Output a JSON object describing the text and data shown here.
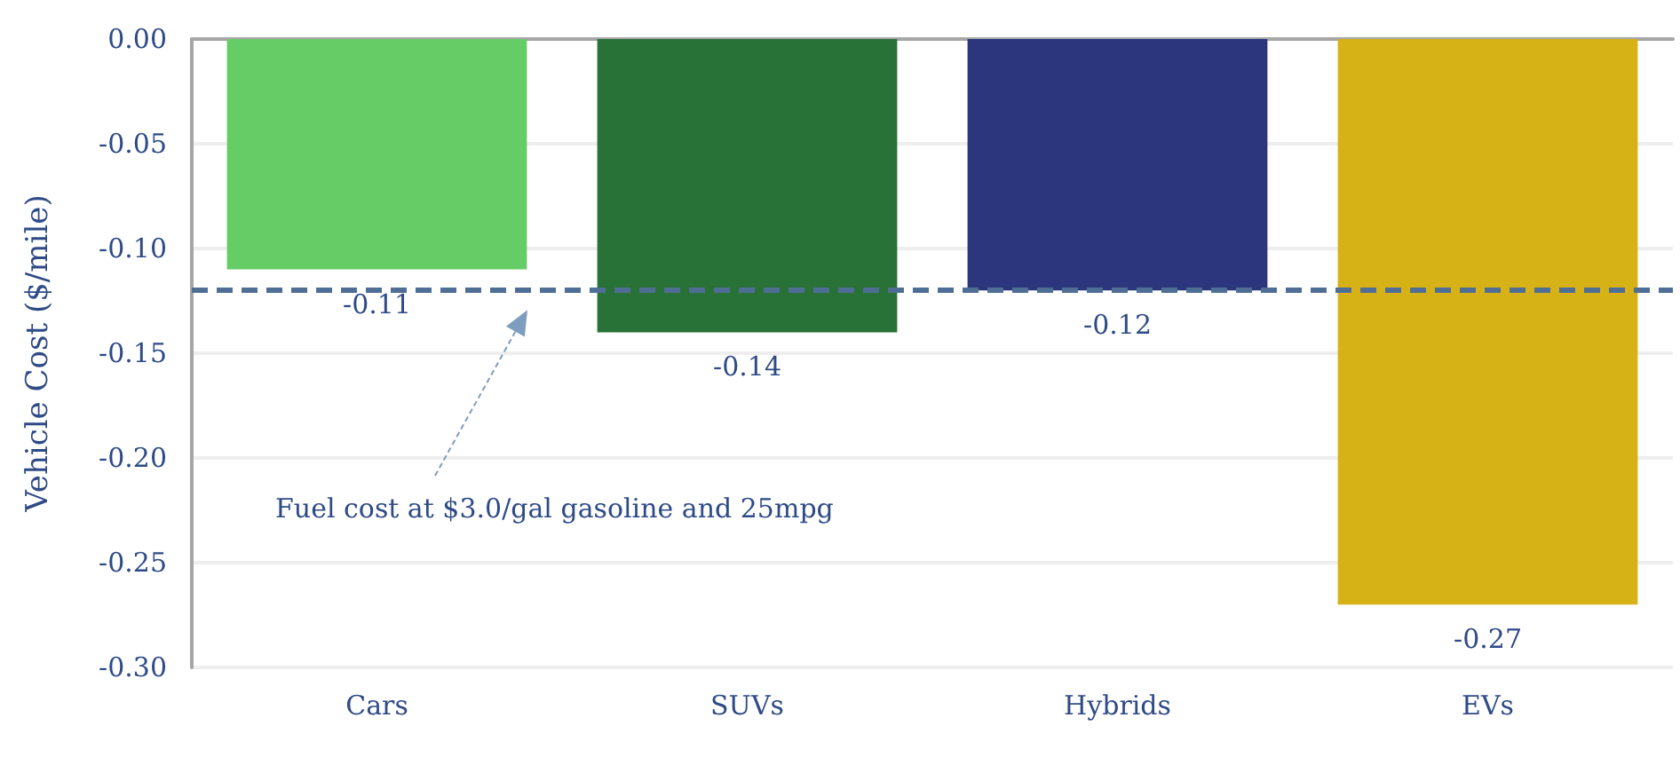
{
  "chart_data": {
    "type": "bar",
    "ylabel": "Vehicle Cost ($/mile)",
    "categories": [
      "Cars",
      "SUVs",
      "Hybrids",
      "EVs"
    ],
    "values": [
      -0.11,
      -0.14,
      -0.12,
      -0.27
    ],
    "colors": [
      "#66cc66",
      "#287137",
      "#2b367c",
      "#d7b217"
    ],
    "ylim": [
      -0.3,
      0
    ],
    "yticks": [
      {
        "value": -0.3,
        "label": "-0.30"
      },
      {
        "value": -0.25,
        "label": "-0.25"
      },
      {
        "value": -0.2,
        "label": "-0.20"
      },
      {
        "value": -0.15,
        "label": "-0.15"
      },
      {
        "value": -0.1,
        "label": "-0.10"
      },
      {
        "value": -0.05,
        "label": "-0.05"
      },
      {
        "value": 0,
        "label": "0.00"
      }
    ],
    "grid": "y",
    "data_labels": true,
    "ref_lines": [
      {
        "axis": "y",
        "value": -0.12,
        "color": "#4f6e96",
        "line_style": "dashed"
      }
    ],
    "annotations": [
      "Fuel cost at $3.0/gal gasoline and 25mpg"
    ]
  }
}
